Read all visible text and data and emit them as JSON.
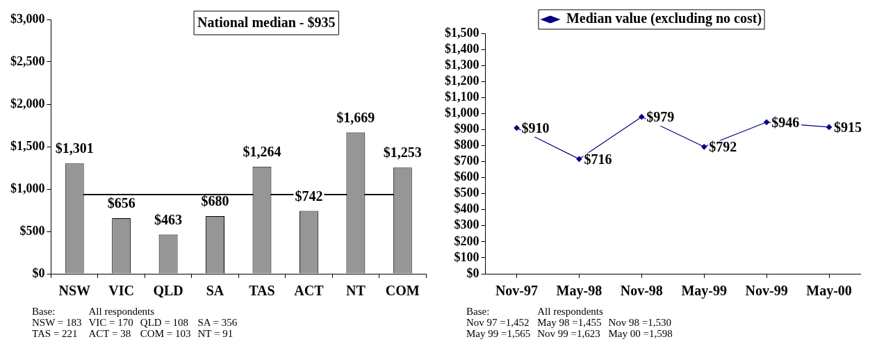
{
  "chart_data": [
    {
      "type": "bar",
      "categories": [
        "NSW",
        "VIC",
        "QLD",
        "SA",
        "TAS",
        "ACT",
        "NT",
        "COM"
      ],
      "values": [
        1301,
        656,
        463,
        680,
        1264,
        742,
        1669,
        1253
      ],
      "color": "#969696",
      "value_labels": [
        "$1,301",
        "$656",
        "$463",
        "$680",
        "$1,264",
        "$742",
        "$1,669",
        "$1,253"
      ],
      "ylim": [
        0,
        3000
      ],
      "yticks": [
        {
          "value": 0,
          "label": "$0"
        },
        {
          "value": 500,
          "label": "$500"
        },
        {
          "value": 1000,
          "label": "$1,000"
        },
        {
          "value": 1500,
          "label": "$1,500"
        },
        {
          "value": 2000,
          "label": "$2,000"
        },
        {
          "value": 2500,
          "label": "$2,500"
        },
        {
          "value": 3000,
          "label": "$3,000"
        }
      ],
      "ref_lines": [
        {
          "axis": "y",
          "value": 935,
          "label": "National median - $935",
          "color": "#000000"
        }
      ],
      "annotations": [
        "Base:",
        "All respondents",
        "NSW = 183",
        "VIC = 170",
        "QLD = 108",
        "SA = 356",
        "TAS = 221",
        "ACT = 38",
        "COM = 103",
        "NT = 91"
      ]
    },
    {
      "type": "line",
      "categories": [
        "Nov-97",
        "May-98",
        "Nov-98",
        "May-99",
        "Nov-99",
        "May-00"
      ],
      "series": [
        {
          "name": "Median value (excluding no cost)",
          "color": "#000080",
          "values": [
            910,
            716,
            979,
            792,
            946,
            915
          ],
          "value_labels": [
            "$910",
            "$716",
            "$979",
            "$792",
            "$946",
            "$915"
          ]
        }
      ],
      "marker": "diamond",
      "legend": "top",
      "ylim": [
        0,
        1500
      ],
      "yticks": [
        {
          "value": 0,
          "label": "$0"
        },
        {
          "value": 100,
          "label": "$100"
        },
        {
          "value": 200,
          "label": "$200"
        },
        {
          "value": 300,
          "label": "$300"
        },
        {
          "value": 400,
          "label": "$400"
        },
        {
          "value": 500,
          "label": "$500"
        },
        {
          "value": 600,
          "label": "$600"
        },
        {
          "value": 700,
          "label": "$700"
        },
        {
          "value": 800,
          "label": "$800"
        },
        {
          "value": 900,
          "label": "$900"
        },
        {
          "value": 1000,
          "label": "$1,000"
        },
        {
          "value": 1100,
          "label": "$1,100"
        },
        {
          "value": 1200,
          "label": "$1,200"
        },
        {
          "value": 1300,
          "label": "$1,300"
        },
        {
          "value": 1400,
          "label": "$1,400"
        },
        {
          "value": 1500,
          "label": "$1,500"
        }
      ],
      "annotations": [
        "Base:",
        "All respondents",
        "Nov 97 =1,452",
        "May 98 =1,455",
        "Nov 98 =1,530",
        "May 99 =1,565",
        "Nov 99 =1,623",
        "May 00 =1,598"
      ]
    }
  ]
}
